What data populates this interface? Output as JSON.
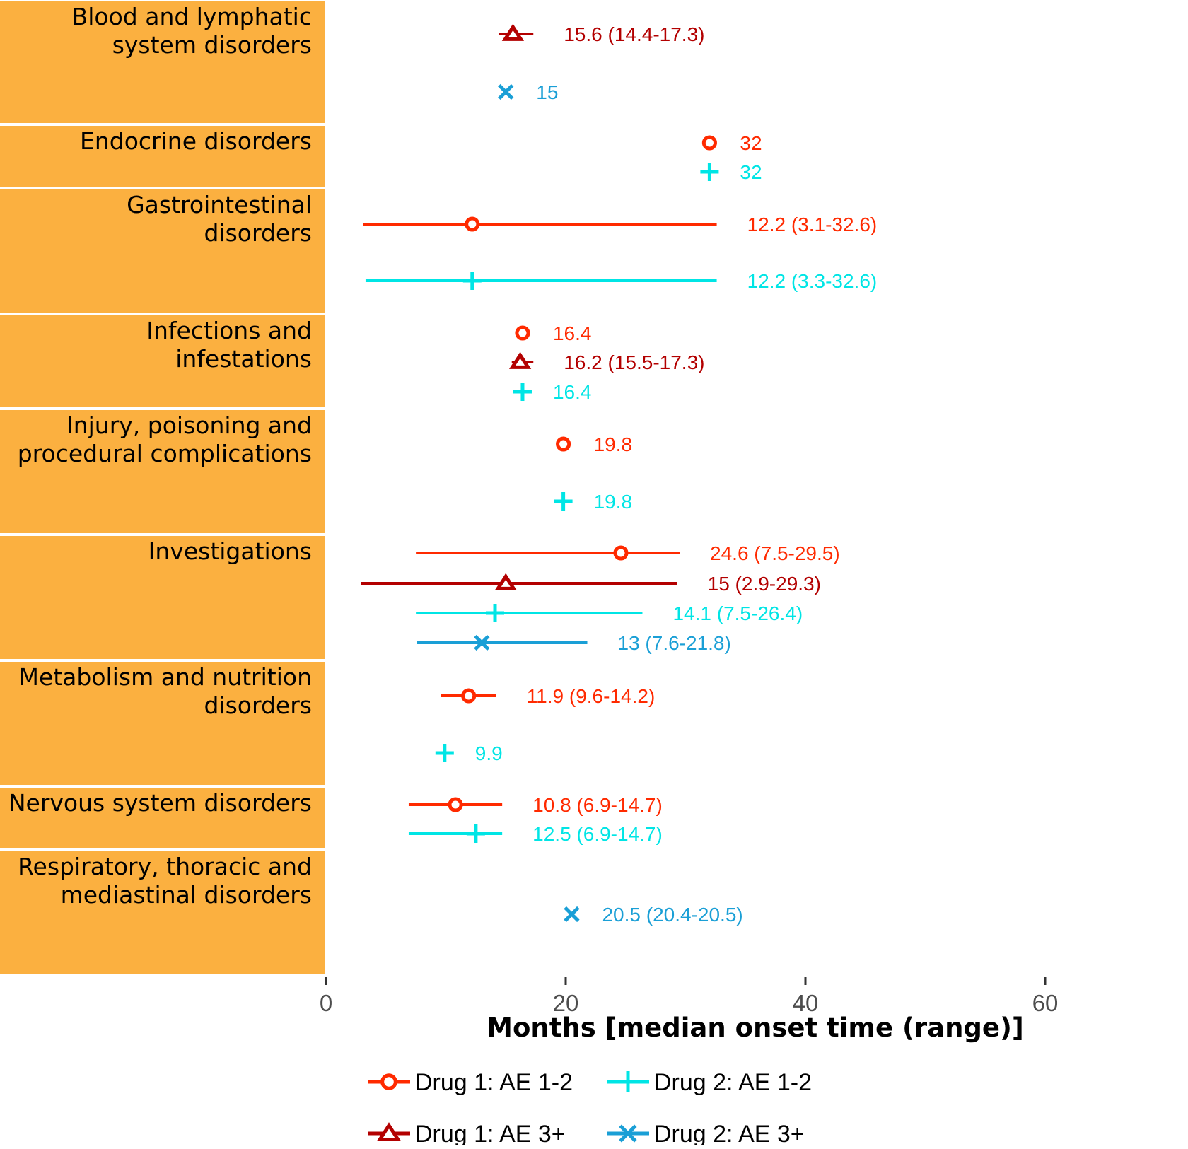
{
  "chart_data": {
    "type": "forest",
    "xlabel": "Months [median onset time (range)]",
    "xlim": [
      0,
      70
    ],
    "xticks": [
      0,
      20,
      40,
      60
    ],
    "grid": false,
    "legend_position": "bottom",
    "series": [
      {
        "name": "Drug 1: AE 1-2",
        "key": "d1a",
        "color": "#ff2a00",
        "marker": "circle-open"
      },
      {
        "name": "Drug 1: AE 3+",
        "key": "d1b",
        "color": "#b30000",
        "marker": "triangle-open"
      },
      {
        "name": "Drug 2: AE 1-2",
        "key": "d2a",
        "color": "#00e5e5",
        "marker": "plus"
      },
      {
        "name": "Drug 2: AE 3+",
        "key": "d2b",
        "color": "#1a9fd6",
        "marker": "cross"
      }
    ],
    "categories": [
      {
        "label": [
          "Blood and lymphatic",
          "system disorders"
        ],
        "points": [
          {
            "series": "d1b",
            "median": 15.6,
            "low": 14.4,
            "high": 17.3,
            "label": "15.6 (14.4-17.3)"
          },
          {
            "series": "d2b",
            "median": 15,
            "low": null,
            "high": null,
            "label": "15"
          }
        ]
      },
      {
        "label": [
          "Endocrine disorders"
        ],
        "points": [
          {
            "series": "d1a",
            "median": 32,
            "low": null,
            "high": null,
            "label": "32"
          },
          {
            "series": "d2a",
            "median": 32,
            "low": null,
            "high": null,
            "label": "32"
          }
        ]
      },
      {
        "label": [
          "Gastrointestinal",
          "disorders"
        ],
        "points": [
          {
            "series": "d1a",
            "median": 12.2,
            "low": 3.1,
            "high": 32.6,
            "label": "12.2 (3.1-32.6)"
          },
          {
            "series": "d2a",
            "median": 12.2,
            "low": 3.3,
            "high": 32.6,
            "label": "12.2 (3.3-32.6)"
          }
        ]
      },
      {
        "label": [
          "Infections and",
          "infestations"
        ],
        "points": [
          {
            "series": "d1a",
            "median": 16.4,
            "low": null,
            "high": null,
            "label": "16.4"
          },
          {
            "series": "d1b",
            "median": 16.2,
            "low": 15.5,
            "high": 17.3,
            "label": "16.2 (15.5-17.3)"
          },
          {
            "series": "d2a",
            "median": 16.4,
            "low": null,
            "high": null,
            "label": "16.4"
          }
        ]
      },
      {
        "label": [
          "Injury, poisoning and",
          "procedural complications"
        ],
        "points": [
          {
            "series": "d1a",
            "median": 19.8,
            "low": null,
            "high": null,
            "label": "19.8"
          },
          {
            "series": "d2a",
            "median": 19.8,
            "low": null,
            "high": null,
            "label": "19.8"
          }
        ]
      },
      {
        "label": [
          "Investigations"
        ],
        "points": [
          {
            "series": "d1a",
            "median": 24.6,
            "low": 7.5,
            "high": 29.5,
            "label": "24.6 (7.5-29.5)"
          },
          {
            "series": "d1b",
            "median": 15,
            "low": 2.9,
            "high": 29.3,
            "label": "15 (2.9-29.3)"
          },
          {
            "series": "d2a",
            "median": 14.1,
            "low": 7.5,
            "high": 26.4,
            "label": "14.1 (7.5-26.4)"
          },
          {
            "series": "d2b",
            "median": 13,
            "low": 7.6,
            "high": 21.8,
            "label": "13 (7.6-21.8)"
          }
        ]
      },
      {
        "label": [
          "Metabolism and nutrition",
          "disorders"
        ],
        "points": [
          {
            "series": "d1a",
            "median": 11.9,
            "low": 9.6,
            "high": 14.2,
            "label": "11.9 (9.6-14.2)"
          },
          {
            "series": "d2a",
            "median": 9.9,
            "low": null,
            "high": null,
            "label": "9.9"
          }
        ]
      },
      {
        "label": [
          "Nervous system disorders"
        ],
        "points": [
          {
            "series": "d1a",
            "median": 10.8,
            "low": 6.9,
            "high": 14.7,
            "label": "10.8 (6.9-14.7)"
          },
          {
            "series": "d2a",
            "median": 12.5,
            "low": 6.9,
            "high": 14.7,
            "label": "12.5 (6.9-14.7)"
          }
        ]
      },
      {
        "label": [
          "Respiratory, thoracic and",
          "mediastinal disorders"
        ],
        "points": [
          {
            "series": "d2b",
            "median": 20.5,
            "low": 20.4,
            "high": 20.5,
            "label": "20.5 (20.4-20.5)"
          }
        ]
      }
    ],
    "strip_color": "#fbb040"
  }
}
